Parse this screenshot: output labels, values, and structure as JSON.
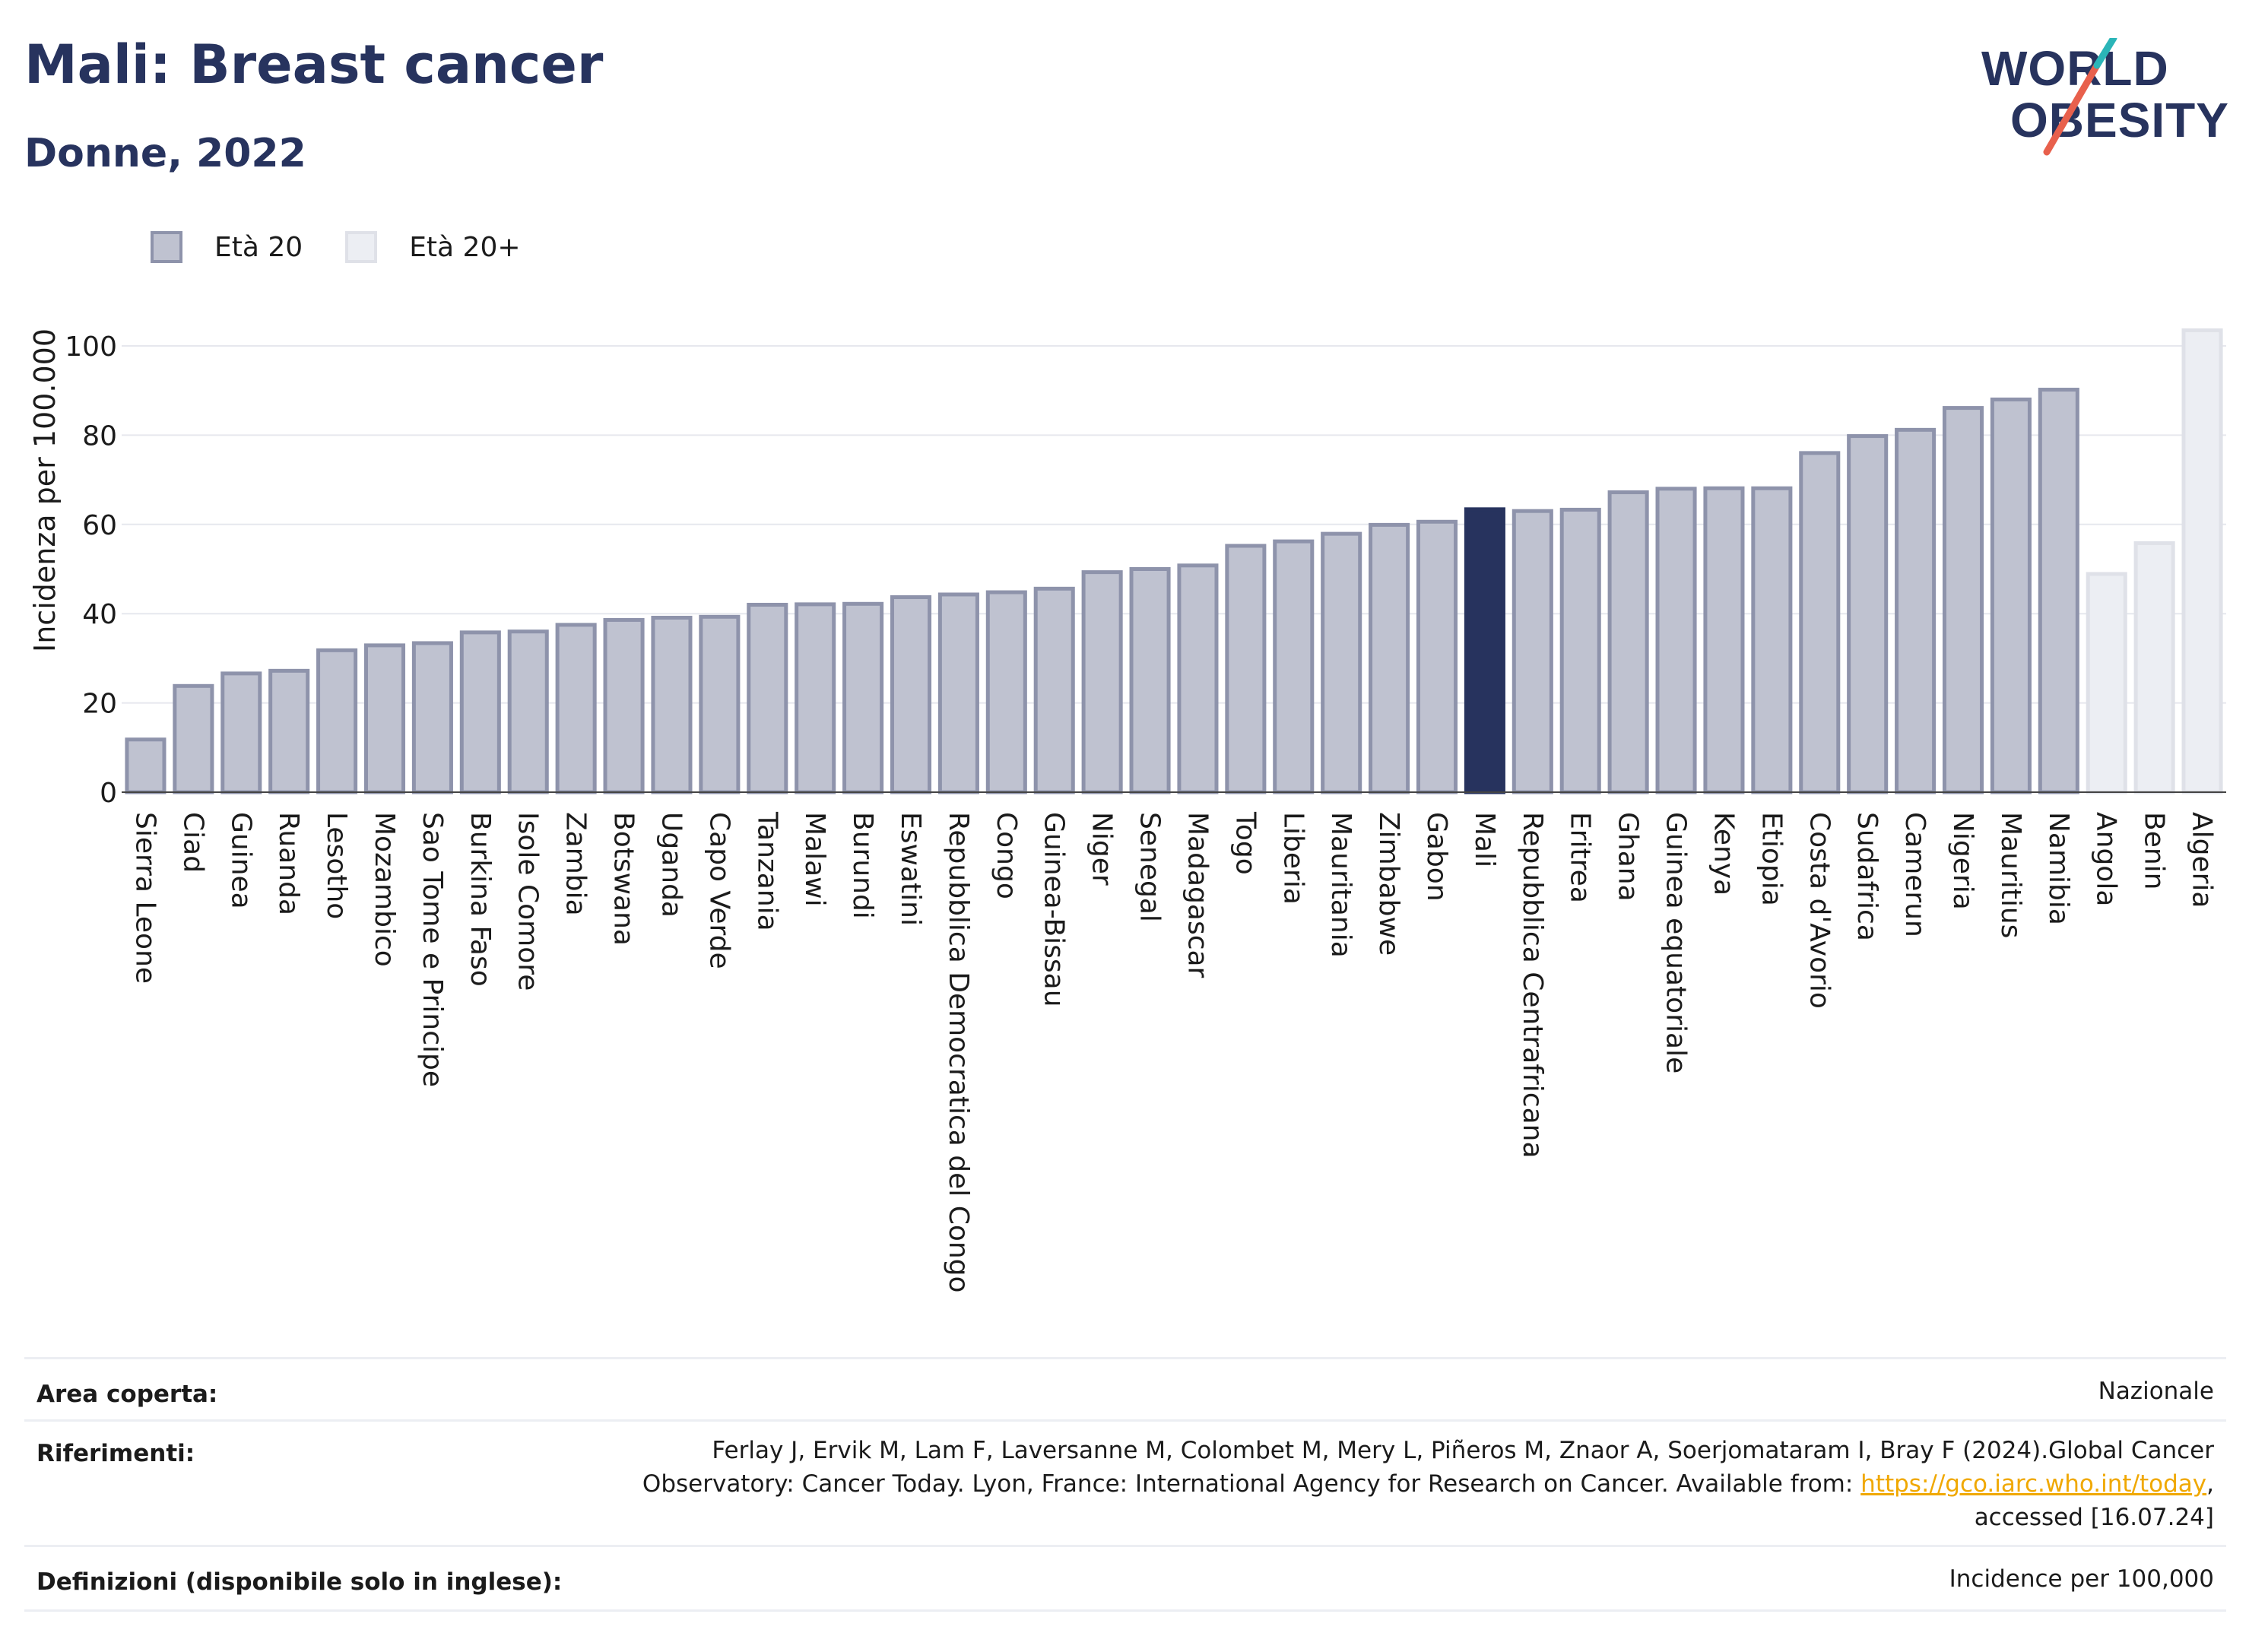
{
  "header": {
    "title": "Mali: Breast cancer",
    "subtitle": "Donne, 2022",
    "logo_text_line1": "WORLD",
    "logo_text_line2": "OBESITY"
  },
  "legend": [
    {
      "label": "Età 20",
      "fill": "#bfc2d0",
      "stroke": "#8e93ab"
    },
    {
      "label": "Età 20+",
      "fill": "#eceef3",
      "stroke": "#dfe1e8"
    }
  ],
  "chart_data": {
    "type": "bar",
    "ylabel": "Incidenza per 100.000",
    "xlabel": "",
    "ylim": [
      0,
      110
    ],
    "yticks": [
      0,
      20,
      40,
      60,
      80,
      100
    ],
    "grid": true,
    "legend_position": "top-left",
    "highlight": "Mali",
    "highlight_color": "#27335e",
    "categories": [
      "Sierra Leone",
      "Ciad",
      "Guinea",
      "Ruanda",
      "Lesotho",
      "Mozambico",
      "Sao Tome e Principe",
      "Burkina Faso",
      "Isole Comore",
      "Zambia",
      "Botswana",
      "Uganda",
      "Capo Verde",
      "Tanzania",
      "Malawi",
      "Burundi",
      "Eswatini",
      "Repubblica Democratica del Congo",
      "Congo",
      "Guinea-Bissau",
      "Niger",
      "Senegal",
      "Madagascar",
      "Togo",
      "Liberia",
      "Mauritania",
      "Zimbabwe",
      "Gabon",
      "Mali",
      "Repubblica Centrafricana",
      "Eritrea",
      "Ghana",
      "Guinea equatoriale",
      "Kenya",
      "Etiopia",
      "Costa d'Avorio",
      "Sudafrica",
      "Camerun",
      "Nigeria",
      "Mauritius",
      "Namibia",
      "Angola",
      "Benin",
      "Algeria"
    ],
    "values": [
      11.8,
      23.8,
      26.6,
      27.2,
      31.8,
      32.9,
      33.4,
      35.8,
      36.0,
      37.5,
      38.6,
      39.1,
      39.3,
      42.0,
      42.1,
      42.2,
      43.7,
      44.3,
      44.8,
      45.6,
      49.3,
      50.0,
      50.8,
      55.2,
      56.2,
      57.9,
      59.9,
      60.6,
      63.4,
      63.0,
      63.3,
      67.2,
      68.0,
      68.1,
      68.1,
      76.0,
      79.8,
      81.2,
      86.1,
      88.0,
      90.2,
      48.9,
      55.8,
      103.5
    ],
    "series_group": [
      "Età 20",
      "Età 20",
      "Età 20",
      "Età 20",
      "Età 20",
      "Età 20",
      "Età 20",
      "Età 20",
      "Età 20",
      "Età 20",
      "Età 20",
      "Età 20",
      "Età 20",
      "Età 20",
      "Età 20",
      "Età 20",
      "Età 20",
      "Età 20",
      "Età 20",
      "Età 20",
      "Età 20",
      "Età 20",
      "Età 20",
      "Età 20",
      "Età 20",
      "Età 20",
      "Età 20",
      "Età 20",
      "Età 20",
      "Età 20",
      "Età 20",
      "Età 20",
      "Età 20",
      "Età 20",
      "Età 20",
      "Età 20",
      "Età 20",
      "Età 20",
      "Età 20",
      "Età 20",
      "Età 20",
      "Età 20+",
      "Età 20+",
      "Età 20+"
    ]
  },
  "footer": {
    "area_label": "Area coperta:",
    "area_value": "Nazionale",
    "ref_label": "Riferimenti:",
    "ref_line1": "Ferlay J, Ervik M, Lam F, Laversanne M, Colombet M, Mery L, Piñeros M, Znaor A, Soerjomataram I, Bray F (2024).Global Cancer",
    "ref_line2_before": "Observatory: Cancer Today. Lyon, France: International Agency for Research on Cancer. Available from: ",
    "ref_link": "https://gco.iarc.who.int/today",
    "ref_line2_after": ",",
    "ref_line3": "accessed [16.07.24]",
    "def_label": "Definizioni (disponibile solo in inglese):",
    "def_value": "Incidence per 100,000"
  }
}
